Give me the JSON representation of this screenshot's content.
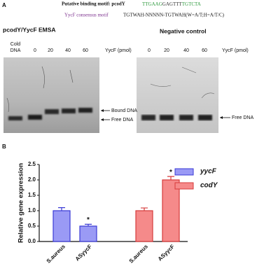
{
  "panel_a": {
    "label": "A",
    "motif_caption": "Putative binding motif: pcodY",
    "motif_sequence": [
      {
        "text": "TTGAAG",
        "color": "#2e9a3e"
      },
      {
        "text": "GAGTTT",
        "color": "#333333"
      },
      {
        "text": "TGTCTA",
        "color": "#2e9a3e"
      }
    ],
    "consensus_caption": "YycF consensus motif",
    "consensus_sequence": "TGTWAH-NNNNN-TGTWAH(W=A/T;H=A/T/C)",
    "left_gel": {
      "title": "pcodY/YycF EMSA",
      "cold_label": [
        "Cold",
        "DNA"
      ],
      "lanes": [
        "0",
        "20",
        "40",
        "60"
      ],
      "axis_label": "YycF (pmol)",
      "band_labels": [
        "Bound DNA",
        "Free DNA"
      ]
    },
    "right_gel": {
      "title": "Negative control",
      "lanes": [
        "0",
        "20",
        "40",
        "60"
      ],
      "axis_label": "YycF (pmol)",
      "band_labels": [
        "Free DNA"
      ]
    }
  },
  "chart_data": {
    "type": "bar",
    "panel_label": "B",
    "y_label": "Relative gene expression",
    "categories": [
      "S.aureus",
      "ASyycF",
      "S.aureus",
      "ASyycF"
    ],
    "series": [
      {
        "name": "yycF",
        "color": "#9a9af5",
        "edge": "#3b3bd6",
        "values": [
          1.0,
          0.5,
          null,
          null
        ],
        "errors": [
          0.1,
          0.06,
          null,
          null
        ],
        "annotations": [
          null,
          "*",
          null,
          null
        ]
      },
      {
        "name": "codY",
        "color": "#f58a8a",
        "edge": "#d63b3b",
        "values": [
          null,
          null,
          1.0,
          2.0
        ],
        "errors": [
          null,
          null,
          0.09,
          0.11
        ],
        "annotations": [
          null,
          null,
          null,
          "*"
        ]
      }
    ],
    "ylim": [
      0,
      2.5
    ],
    "yticks": [
      {
        "value": 0,
        "label": "0.0"
      },
      {
        "value": 0.5,
        "label": "0.5"
      },
      {
        "value": 1,
        "label": "1.0"
      },
      {
        "value": 1.5,
        "label": "1.5"
      },
      {
        "value": 2,
        "label": "2.0"
      },
      {
        "value": 2.5,
        "label": "2.5"
      }
    ],
    "legend": "top-right"
  }
}
